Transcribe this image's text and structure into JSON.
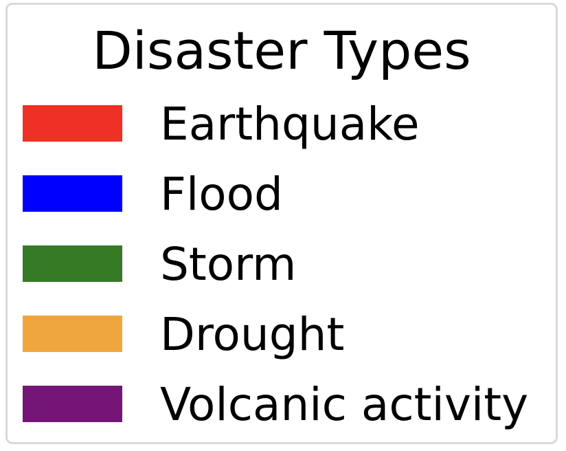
{
  "chart_data": {
    "type": "bar",
    "title": "",
    "legend": {
      "title": "Disaster Types",
      "entries": [
        {
          "name": "Earthquake",
          "color": "#ee3124"
        },
        {
          "name": "Flood",
          "color": "#0000ff"
        },
        {
          "name": "Storm",
          "color": "#367a25"
        },
        {
          "name": "Drought",
          "color": "#f0a63e"
        },
        {
          "name": "Volcanic activity",
          "color": "#751578"
        }
      ]
    }
  }
}
